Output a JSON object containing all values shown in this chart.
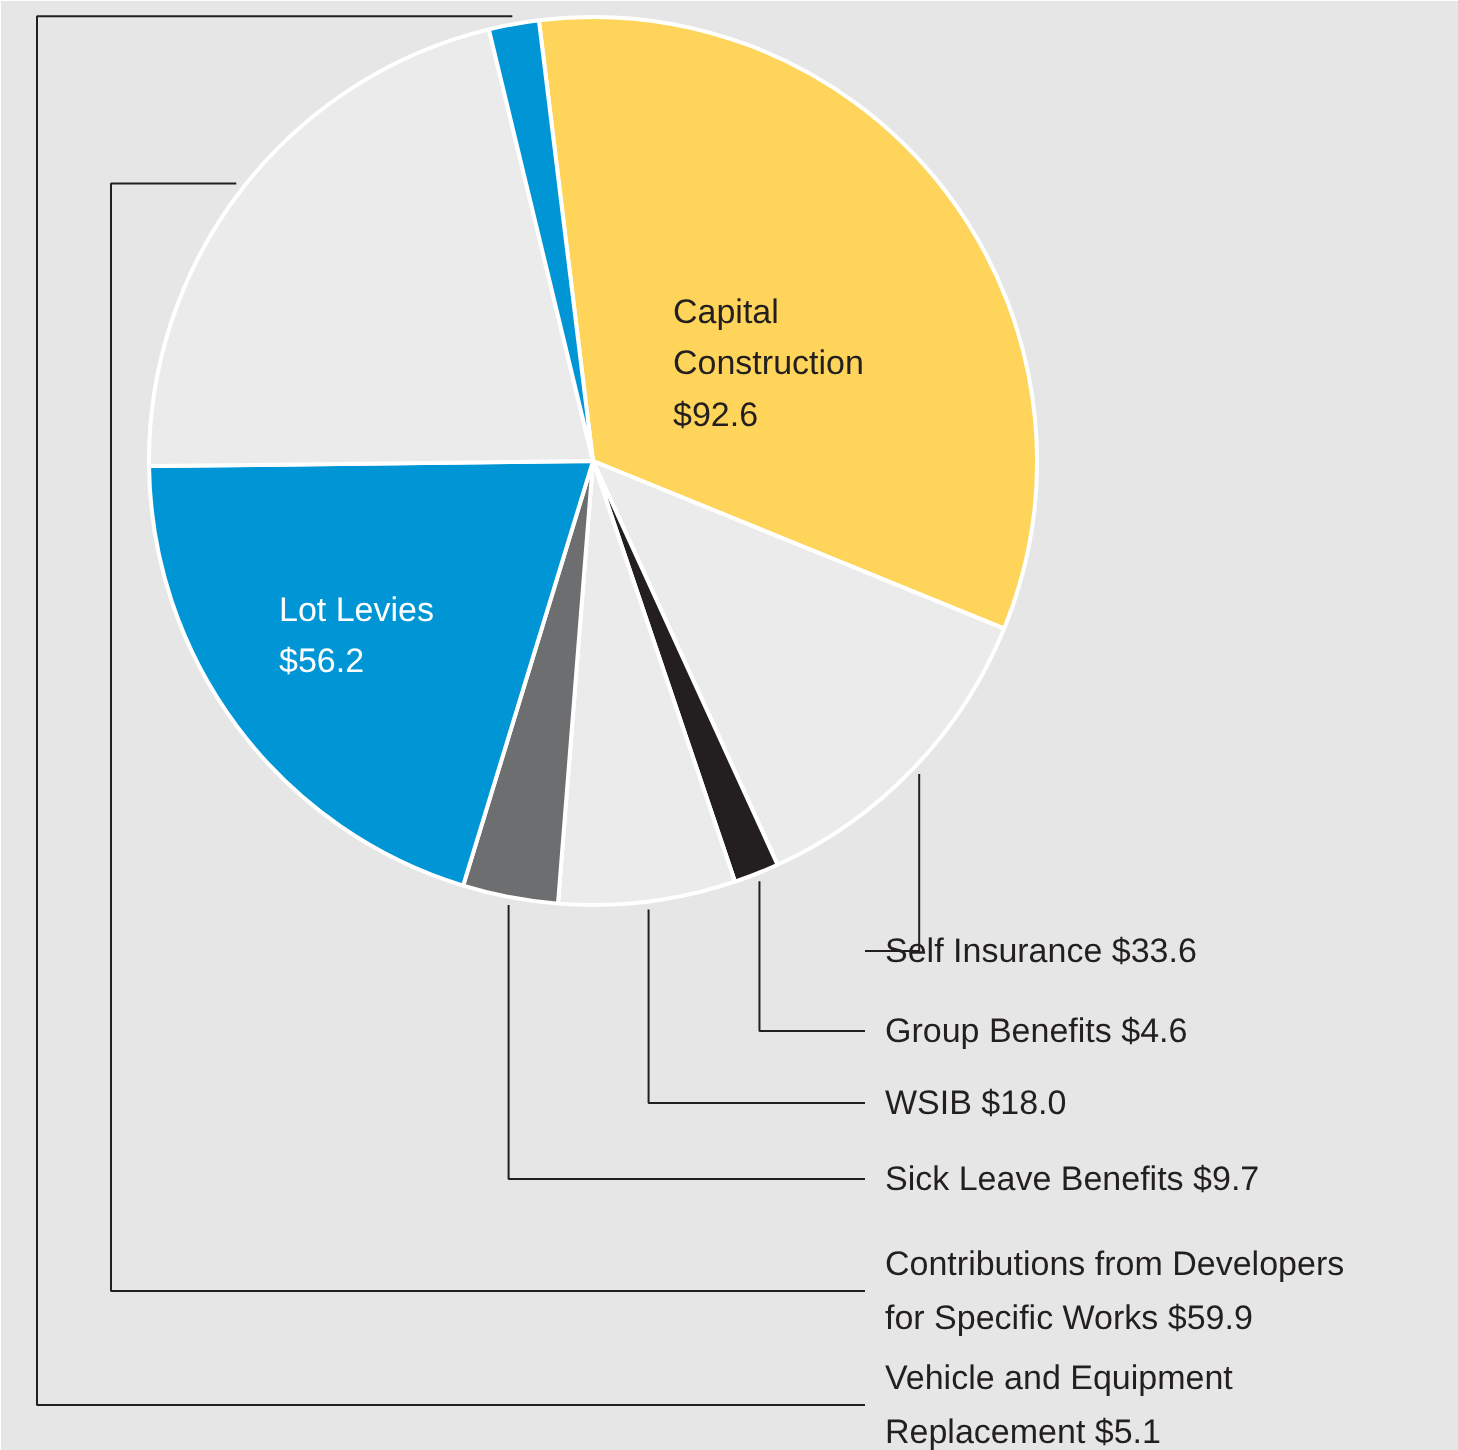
{
  "chart_data": {
    "type": "pie",
    "categories": [
      "Capital Construction",
      "Self Insurance",
      "Group Benefits",
      "WSIB",
      "Sick Leave Benefits",
      "Lot Levies",
      "Contributions from Developers for Specific Works",
      "Vehicle and Equipment Replacement"
    ],
    "values": [
      92.6,
      33.6,
      4.6,
      18.0,
      9.7,
      56.2,
      59.9,
      5.1
    ],
    "value_labels": [
      "$92.6",
      "$33.6",
      "$4.6",
      "$18.0",
      "$9.7",
      "$56.2",
      "$59.9",
      "$5.1"
    ],
    "colors": [
      "#fed55a",
      "#ebebeb",
      "#231f20",
      "#ebebeb",
      "#6d6e70",
      "#0096d6",
      "#ebebeb",
      "#0096d6"
    ]
  }
}
